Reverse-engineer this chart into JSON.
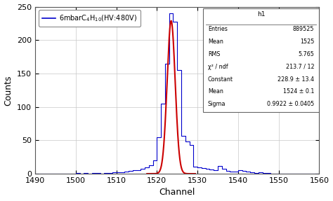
{
  "title": "",
  "xlabel": "Channel",
  "ylabel": "Counts",
  "xlim": [
    1490,
    1560
  ],
  "ylim": [
    0,
    250
  ],
  "yticks": [
    0,
    50,
    100,
    150,
    200,
    250
  ],
  "xticks": [
    1490,
    1500,
    1510,
    1520,
    1530,
    1540,
    1550,
    1560
  ],
  "legend_label": "6mbarC$_4$H$_{10}$(HV:480V)",
  "stats_title": "h1",
  "stats_rows": [
    [
      "Entries",
      "889525"
    ],
    [
      "Mean",
      "1525"
    ],
    [
      "RMS",
      "5.765"
    ],
    [
      "χ² / ndf",
      "213.7 / 12"
    ],
    [
      "Constant",
      "228.9 ± 13.4"
    ],
    [
      "Mean",
      "1524 ± 0.1"
    ],
    [
      "Sigma",
      "0.9922 ± 0.0405"
    ]
  ],
  "hist_color": "#0000cc",
  "fit_color": "#cc0000",
  "bg_color": "#ffffff",
  "grid_color": "#c8c8c8",
  "gauss_constant": 228.9,
  "gauss_mean": 1523.5,
  "gauss_sigma": 0.9922,
  "bin_width": 1,
  "bin_start": 1490,
  "bin_counts": [
    0,
    0,
    0,
    0,
    0,
    0,
    0,
    0,
    0,
    0,
    1,
    0,
    1,
    0,
    1,
    1,
    0,
    1,
    1,
    2,
    2,
    2,
    3,
    4,
    5,
    5,
    7,
    9,
    13,
    20,
    55,
    105,
    165,
    240,
    228,
    155,
    57,
    48,
    43,
    10,
    9,
    8,
    7,
    6,
    5,
    12,
    7,
    4,
    3,
    3,
    5,
    4,
    3,
    2,
    1,
    2,
    1,
    1,
    0,
    0,
    0,
    0,
    0,
    0,
    0,
    0,
    0,
    0,
    0,
    0
  ]
}
